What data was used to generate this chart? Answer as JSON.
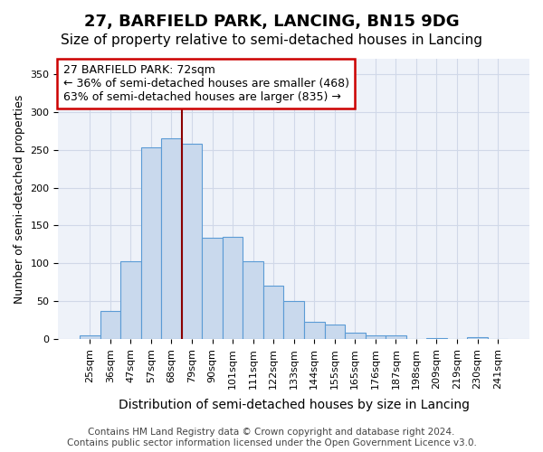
{
  "title": "27, BARFIELD PARK, LANCING, BN15 9DG",
  "subtitle": "Size of property relative to semi-detached houses in Lancing",
  "xlabel": "Distribution of semi-detached houses by size in Lancing",
  "ylabel": "Number of semi-detached properties",
  "categories": [
    "25sqm",
    "36sqm",
    "47sqm",
    "57sqm",
    "68sqm",
    "79sqm",
    "90sqm",
    "101sqm",
    "111sqm",
    "122sqm",
    "133sqm",
    "144sqm",
    "155sqm",
    "165sqm",
    "176sqm",
    "187sqm",
    "198sqm",
    "209sqm",
    "219sqm",
    "230sqm",
    "241sqm"
  ],
  "values": [
    5,
    37,
    103,
    253,
    265,
    258,
    134,
    135,
    103,
    70,
    50,
    23,
    19,
    8,
    5,
    5,
    0,
    1,
    0,
    2,
    0
  ],
  "bar_color": "#c9d9ed",
  "bar_edge_color": "#5b9bd5",
  "grid_color": "#d0d8e8",
  "annotation_text_line1": "27 BARFIELD PARK: 72sqm",
  "annotation_text_line2": "← 36% of semi-detached houses are smaller (468)",
  "annotation_text_line3": "63% of semi-detached houses are larger (835) →",
  "vline_color": "#8b0000",
  "vline_x_bin": 4.5,
  "footer_line1": "Contains HM Land Registry data © Crown copyright and database right 2024.",
  "footer_line2": "Contains public sector information licensed under the Open Government Licence v3.0.",
  "ylim": [
    0,
    370
  ],
  "yticks": [
    0,
    50,
    100,
    150,
    200,
    250,
    300,
    350
  ],
  "title_fontsize": 13,
  "subtitle_fontsize": 11,
  "xlabel_fontsize": 10,
  "ylabel_fontsize": 9,
  "tick_fontsize": 8,
  "annotation_fontsize": 9,
  "footer_fontsize": 7.5,
  "background_color": "#ffffff",
  "plot_bg_color": "#eef2f9",
  "annotation_box_edge_color": "#cc0000"
}
